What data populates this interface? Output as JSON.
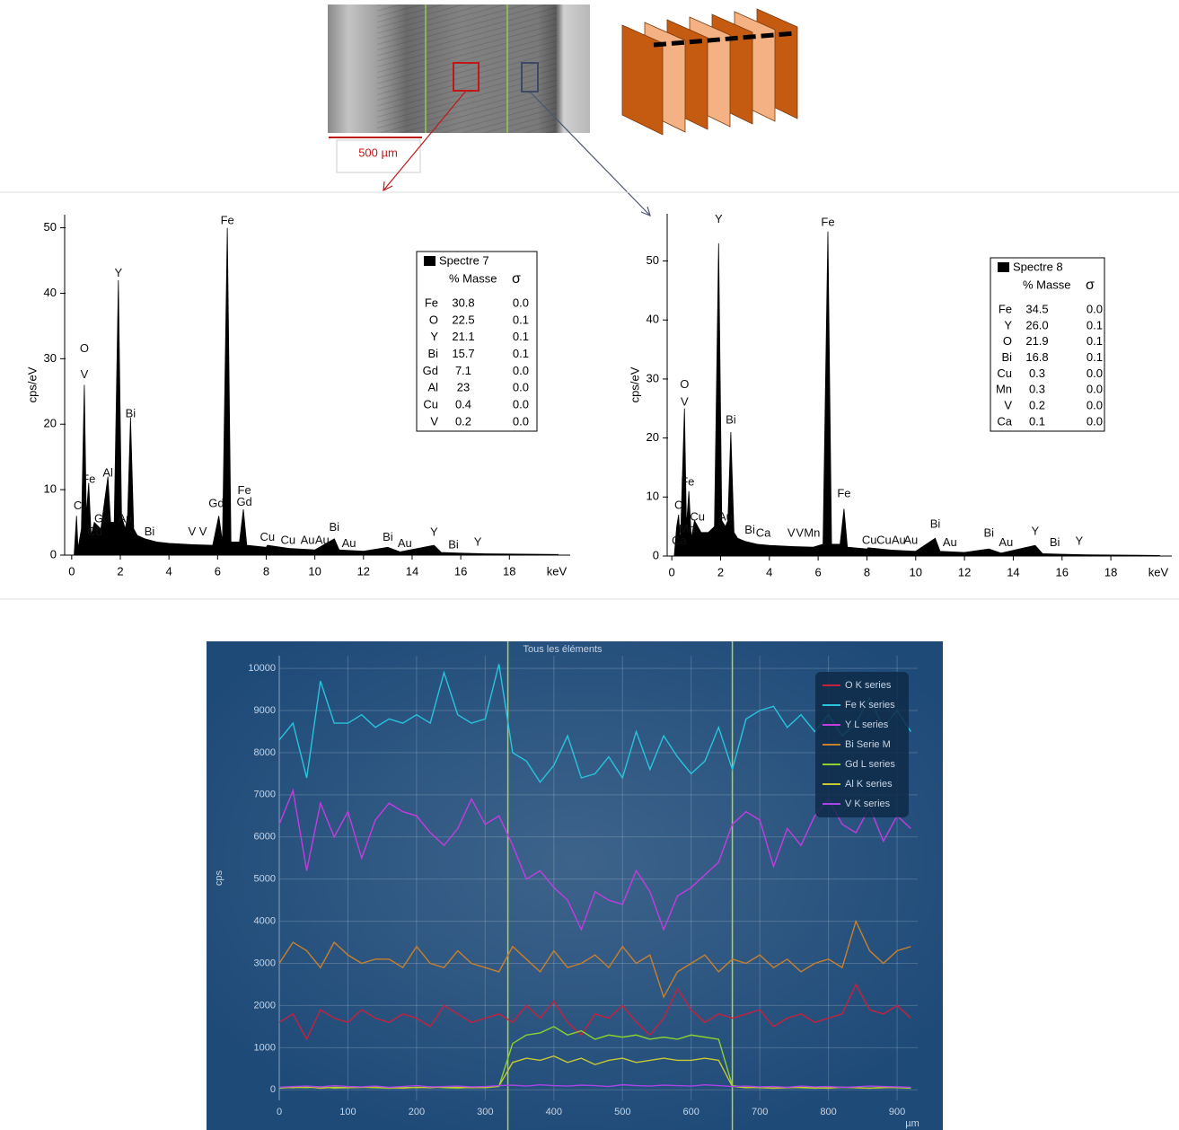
{
  "image": {
    "scale_label": "500 µm"
  },
  "chart_data": [
    {
      "type": "area",
      "color": "#000000",
      "xlabel": "keV",
      "ylabel": "cps/eV",
      "xlim": [
        -0.4,
        20.5
      ],
      "ylim": [
        0,
        52
      ],
      "xticks": [
        0,
        2,
        4,
        6,
        8,
        10,
        12,
        14,
        16,
        18
      ],
      "yticks": [
        0,
        10,
        20,
        30,
        40,
        50
      ],
      "x": [
        0.1,
        0.2,
        0.26,
        0.4,
        0.52,
        0.6,
        0.7,
        0.8,
        0.93,
        1.2,
        1.49,
        1.6,
        1.75,
        1.92,
        2.05,
        2.2,
        2.3,
        2.42,
        2.55,
        2.7,
        3,
        3.5,
        4,
        5,
        5.8,
        6.05,
        6.2,
        6.4,
        6.55,
        6.9,
        7.06,
        7.2,
        8,
        8.05,
        9,
        10,
        10.8,
        11,
        12,
        13,
        13.5,
        14.9,
        15.2,
        16,
        17,
        20
      ],
      "values": [
        0,
        6,
        1,
        4,
        26,
        6,
        11,
        3,
        5,
        4,
        12,
        5,
        5,
        42,
        6,
        4,
        6,
        21,
        4,
        3,
        2.5,
        2,
        1.8,
        1.6,
        1.5,
        6,
        2,
        50,
        2,
        2,
        7,
        1.5,
        1.2,
        1.5,
        1,
        0.8,
        2.5,
        0.8,
        0.6,
        1.2,
        0.5,
        1.5,
        0.4,
        0.3,
        0.2,
        0.1
      ],
      "annotations": [
        {
          "text": "Fe",
          "x": 6.4,
          "y": 51
        },
        {
          "text": "Y",
          "x": 1.92,
          "y": 43
        },
        {
          "text": "O",
          "x": 0.52,
          "y": 31.5
        },
        {
          "text": "V",
          "x": 0.52,
          "y": 27.5
        },
        {
          "text": "Bi",
          "x": 2.42,
          "y": 21.5
        },
        {
          "text": "Fe",
          "x": 0.7,
          "y": 11.5
        },
        {
          "text": "Al",
          "x": 1.49,
          "y": 12.5
        },
        {
          "text": "C",
          "x": 0.25,
          "y": 7.5
        },
        {
          "text": "Cu",
          "x": 0.95,
          "y": 3.5
        },
        {
          "text": "Gd",
          "x": 1.25,
          "y": 5.5
        },
        {
          "text": "Au",
          "x": 2.2,
          "y": 5.5
        },
        {
          "text": "Bi",
          "x": 3.2,
          "y": 3.5
        },
        {
          "text": "V",
          "x": 4.95,
          "y": 3.5
        },
        {
          "text": "V",
          "x": 5.4,
          "y": 3.5
        },
        {
          "text": "Gd",
          "x": 5.95,
          "y": 7.8
        },
        {
          "text": "Fe",
          "x": 7.1,
          "y": 9.8
        },
        {
          "text": "Gd",
          "x": 7.1,
          "y": 8
        },
        {
          "text": "Cu",
          "x": 8.05,
          "y": 2.7
        },
        {
          "text": "Cu",
          "x": 8.9,
          "y": 2.2
        },
        {
          "text": "Au",
          "x": 9.7,
          "y": 2.2
        },
        {
          "text": "Au",
          "x": 10.3,
          "y": 2.2
        },
        {
          "text": "Bi",
          "x": 10.8,
          "y": 4.2
        },
        {
          "text": "Au",
          "x": 11.4,
          "y": 1.7
        },
        {
          "text": "Bi",
          "x": 13,
          "y": 2.7
        },
        {
          "text": "Au",
          "x": 13.7,
          "y": 1.7
        },
        {
          "text": "Y",
          "x": 14.9,
          "y": 3.4
        },
        {
          "text": "Bi",
          "x": 15.7,
          "y": 1.5
        },
        {
          "text": "Y",
          "x": 16.7,
          "y": 1.9
        }
      ],
      "legend": {
        "title": "Spectre 7",
        "header": [
          "% Masse",
          "σ"
        ],
        "rows": [
          [
            "Fe",
            "30.8",
            "0.0"
          ],
          [
            "O",
            "22.5",
            "0.1"
          ],
          [
            "Y",
            "21.1",
            "0.1"
          ],
          [
            "Bi",
            "15.7",
            "0.1"
          ],
          [
            "Gd",
            "7.1",
            "0.0"
          ],
          [
            "Al",
            "23",
            "0.0"
          ],
          [
            "Cu",
            "0.4",
            "0.0"
          ],
          [
            "V",
            "0.2",
            "0.0"
          ]
        ]
      }
    },
    {
      "type": "area",
      "color": "#000000",
      "xlabel": "keV",
      "ylabel": "cps/eV",
      "xlim": [
        -0.3,
        20.5
      ],
      "ylim": [
        0,
        58
      ],
      "xticks": [
        0,
        2,
        4,
        6,
        8,
        10,
        12,
        14,
        16,
        18
      ],
      "yticks": [
        0,
        10,
        20,
        30,
        40,
        50
      ],
      "x": [
        0.1,
        0.2,
        0.28,
        0.35,
        0.52,
        0.6,
        0.7,
        0.8,
        0.93,
        1.2,
        1.5,
        1.75,
        1.92,
        2.05,
        2.2,
        2.3,
        2.42,
        2.55,
        2.7,
        3,
        3.5,
        4,
        5,
        5.8,
        6.2,
        6.4,
        6.55,
        6.9,
        7.06,
        7.2,
        8,
        8.05,
        9,
        10,
        10.8,
        11,
        12,
        13,
        13.5,
        14.9,
        15.2,
        16,
        17,
        20
      ],
      "values": [
        0,
        5,
        7,
        2,
        25,
        5,
        11,
        3,
        6,
        4,
        4,
        5,
        53,
        6,
        5,
        6,
        21,
        4,
        3,
        2.5,
        2,
        1.8,
        1.6,
        1.5,
        2,
        55,
        2,
        2,
        8,
        1.5,
        1.2,
        1.4,
        1,
        0.8,
        3,
        0.8,
        0.6,
        1.2,
        0.5,
        1.8,
        0.4,
        0.3,
        0.2,
        0.1
      ],
      "annotations": [
        {
          "text": "Y",
          "x": 1.92,
          "y": 57
        },
        {
          "text": "Fe",
          "x": 6.4,
          "y": 56.5
        },
        {
          "text": "O",
          "x": 0.52,
          "y": 29
        },
        {
          "text": "V",
          "x": 0.52,
          "y": 26
        },
        {
          "text": "Bi",
          "x": 2.42,
          "y": 23
        },
        {
          "text": "Fe",
          "x": 0.65,
          "y": 12.5
        },
        {
          "text": "C",
          "x": 0.28,
          "y": 8.5
        },
        {
          "text": "Cu",
          "x": 1.05,
          "y": 6.5
        },
        {
          "text": "Mn",
          "x": 0.62,
          "y": 4.5
        },
        {
          "text": "Ca",
          "x": 0.3,
          "y": 2.5
        },
        {
          "text": "Au",
          "x": 2.2,
          "y": 6.5
        },
        {
          "text": "Bi",
          "x": 3.2,
          "y": 4.3
        },
        {
          "text": "Ca",
          "x": 3.75,
          "y": 3.8
        },
        {
          "text": "V",
          "x": 4.9,
          "y": 3.8
        },
        {
          "text": "V",
          "x": 5.25,
          "y": 3.8
        },
        {
          "text": "Mn",
          "x": 5.75,
          "y": 3.8
        },
        {
          "text": "Fe",
          "x": 7.06,
          "y": 10.5
        },
        {
          "text": "Cu",
          "x": 8.1,
          "y": 2.6
        },
        {
          "text": "Cu",
          "x": 8.7,
          "y": 2.6
        },
        {
          "text": "Au",
          "x": 9.3,
          "y": 2.6
        },
        {
          "text": "Au",
          "x": 9.8,
          "y": 2.6
        },
        {
          "text": "Bi",
          "x": 10.8,
          "y": 5.3
        },
        {
          "text": "Au",
          "x": 11.4,
          "y": 2.2
        },
        {
          "text": "Bi",
          "x": 13,
          "y": 3.8
        },
        {
          "text": "Au",
          "x": 13.7,
          "y": 2.2
        },
        {
          "text": "Y",
          "x": 14.9,
          "y": 4.1
        },
        {
          "text": "Bi",
          "x": 15.7,
          "y": 2.2
        },
        {
          "text": "Y",
          "x": 16.7,
          "y": 2.4
        }
      ],
      "legend": {
        "title": "Spectre 8",
        "header": [
          "% Masse",
          "σ"
        ],
        "rows": [
          [
            "Fe",
            "34.5",
            "0.0"
          ],
          [
            "Y",
            "26.0",
            "0.1"
          ],
          [
            "O",
            "21.9",
            "0.1"
          ],
          [
            "Bi",
            "16.8",
            "0.1"
          ],
          [
            "Cu",
            "0.3",
            "0.0"
          ],
          [
            "Mn",
            "0.3",
            "0.0"
          ],
          [
            "V",
            "0.2",
            "0.0"
          ],
          [
            "Ca",
            "0.1",
            "0.0"
          ]
        ]
      }
    },
    {
      "type": "line",
      "title": "Tous les éléments",
      "xlabel": "µm",
      "ylabel": "cps",
      "background": "#1e4a78",
      "grid": true,
      "legend": "upper right",
      "xlim": [
        0,
        930
      ],
      "ylim": [
        -250,
        10300
      ],
      "xticks": [
        0,
        100,
        200,
        300,
        400,
        500,
        600,
        700,
        800,
        900
      ],
      "yticks": [
        0,
        1000,
        2000,
        3000,
        4000,
        5000,
        6000,
        7000,
        8000,
        9000,
        10000
      ],
      "vlines": [
        333,
        660
      ],
      "vline_color": "#b8d040",
      "x": [
        0,
        20,
        40,
        60,
        80,
        100,
        120,
        140,
        160,
        180,
        200,
        220,
        240,
        260,
        280,
        300,
        320,
        340,
        360,
        380,
        400,
        420,
        440,
        460,
        480,
        500,
        520,
        540,
        560,
        580,
        600,
        620,
        640,
        660,
        680,
        700,
        720,
        740,
        760,
        780,
        800,
        820,
        840,
        860,
        880,
        900,
        920
      ],
      "series": [
        {
          "name": "O K series",
          "color": "#c8203c",
          "values": [
            1600,
            1800,
            1200,
            1900,
            1700,
            1600,
            1900,
            1700,
            1600,
            1800,
            1700,
            1500,
            2000,
            1800,
            1600,
            1700,
            1800,
            1600,
            2000,
            1700,
            2100,
            1600,
            1300,
            1800,
            1700,
            2000,
            1600,
            1300,
            1700,
            2400,
            1900,
            1600,
            1800,
            1700,
            1800,
            1900,
            1500,
            1700,
            1800,
            1600,
            1700,
            1800,
            2500,
            1900,
            1800,
            2000,
            1700
          ]
        },
        {
          "name": "Fe K series",
          "color": "#28c4dc",
          "values": [
            8300,
            8700,
            7400,
            9700,
            8700,
            8700,
            8900,
            8600,
            8800,
            8700,
            8900,
            8700,
            9900,
            8900,
            8700,
            8800,
            10100,
            8000,
            7800,
            7300,
            7700,
            8400,
            7400,
            7500,
            7900,
            7400,
            8500,
            7600,
            8400,
            7900,
            7500,
            7800,
            8600,
            7600,
            8800,
            9000,
            9100,
            8600,
            8900,
            8500,
            8900,
            8400,
            8700,
            9300,
            8600,
            9000,
            8500
          ]
        },
        {
          "name": "Y L series",
          "color": "#c43ce0",
          "values": [
            6300,
            7100,
            5200,
            6800,
            6000,
            6600,
            5500,
            6400,
            6800,
            6600,
            6500,
            6100,
            5800,
            6200,
            6900,
            6300,
            6500,
            5800,
            5000,
            5200,
            4800,
            4500,
            3800,
            4700,
            4500,
            4400,
            5200,
            4700,
            3800,
            4600,
            4800,
            5100,
            5400,
            6300,
            6600,
            6400,
            5300,
            6200,
            5800,
            6500,
            6900,
            6300,
            6100,
            6700,
            5900,
            6500,
            6200
          ]
        },
        {
          "name": "Bi Serie M",
          "color": "#c8802c",
          "values": [
            3000,
            3500,
            3300,
            2900,
            3500,
            3200,
            3000,
            3100,
            3100,
            2900,
            3400,
            3000,
            2900,
            3300,
            3000,
            2900,
            2800,
            3400,
            3100,
            2800,
            3300,
            2900,
            3000,
            3200,
            2900,
            3400,
            3000,
            3200,
            2200,
            2800,
            3000,
            3200,
            2800,
            3100,
            3000,
            3200,
            2900,
            3100,
            2800,
            3000,
            3100,
            2900,
            4000,
            3300,
            3000,
            3300,
            3400
          ]
        },
        {
          "name": "Gd L series",
          "color": "#8cd030",
          "values": [
            40,
            60,
            50,
            70,
            40,
            50,
            60,
            50,
            40,
            60,
            50,
            70,
            50,
            40,
            60,
            50,
            80,
            1100,
            1300,
            1350,
            1500,
            1300,
            1400,
            1200,
            1300,
            1250,
            1300,
            1200,
            1250,
            1200,
            1300,
            1250,
            1200,
            100,
            60,
            50,
            40,
            60,
            50,
            40,
            50,
            60,
            50,
            40,
            60,
            50,
            40
          ]
        },
        {
          "name": "Al K series",
          "color": "#c8c830",
          "values": [
            60,
            50,
            70,
            40,
            60,
            50,
            60,
            70,
            50,
            40,
            60,
            50,
            70,
            60,
            50,
            60,
            90,
            650,
            750,
            700,
            800,
            650,
            750,
            600,
            700,
            750,
            650,
            700,
            750,
            700,
            700,
            750,
            700,
            80,
            50,
            60,
            40,
            50,
            60,
            50,
            40,
            60,
            50,
            40,
            50,
            60,
            50
          ]
        },
        {
          "name": "V K series",
          "color": "#a844e8",
          "values": [
            60,
            80,
            90,
            70,
            100,
            80,
            70,
            90,
            60,
            80,
            100,
            70,
            80,
            90,
            70,
            80,
            100,
            110,
            90,
            120,
            100,
            90,
            110,
            100,
            80,
            120,
            100,
            90,
            110,
            100,
            90,
            120,
            100,
            80,
            90,
            70,
            80,
            60,
            90,
            70,
            80,
            60,
            70,
            90,
            80,
            70,
            60
          ]
        }
      ]
    }
  ]
}
